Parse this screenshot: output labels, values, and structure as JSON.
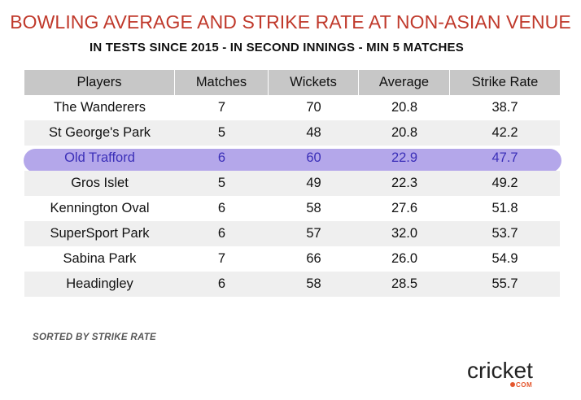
{
  "title": "BOWLING AVERAGE AND STRIKE RATE AT NON-ASIAN VENUE",
  "subtitle": "IN TESTS SINCE 2015 - IN SECOND INNINGS - MIN 5 MATCHES",
  "footnote": "SORTED BY STRIKE RATE",
  "logo": {
    "text": "cricket",
    "sub": "COM",
    "accent_color": "#e4572e"
  },
  "colors": {
    "title": "#c0392b",
    "header_bg": "#c7c7c7",
    "highlight_band": "#b4a7ea",
    "highlight_text": "#3b2fb8"
  },
  "chart_data": {
    "type": "table",
    "columns": [
      "Players",
      "Matches",
      "Wickets",
      "Average",
      "Strike Rate"
    ],
    "highlighted_row": "Old Trafford",
    "rows": [
      [
        "The Wanderers",
        "7",
        "70",
        "20.8",
        "38.7"
      ],
      [
        "St George's Park",
        "5",
        "48",
        "20.8",
        "42.2"
      ],
      [
        "Old Trafford",
        "6",
        "60",
        "22.9",
        "47.7"
      ],
      [
        "Gros Islet",
        "5",
        "49",
        "22.3",
        "49.2"
      ],
      [
        "Kennington Oval",
        "6",
        "58",
        "27.6",
        "51.8"
      ],
      [
        "SuperSport Park",
        "6",
        "57",
        "32.0",
        "53.7"
      ],
      [
        "Sabina Park",
        "7",
        "66",
        "26.0",
        "54.9"
      ],
      [
        "Headingley",
        "6",
        "58",
        "28.5",
        "55.7"
      ]
    ]
  }
}
